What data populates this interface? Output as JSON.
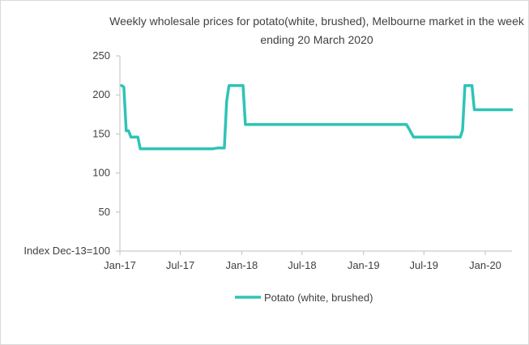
{
  "chart_data": {
    "type": "line",
    "title": "Weekly wholesale prices for potato(white, brushed), Melbourne market in the week ending 20 March 2020",
    "ylabel": "Index Dec-13=100",
    "xlabel": "",
    "ylim": [
      0,
      250
    ],
    "yticks": [
      "250",
      "200",
      "150",
      "100",
      "50",
      ""
    ],
    "xticks": [
      "Jan-17",
      "Jul-17",
      "Jan-18",
      "Jul-18",
      "Jan-19",
      "Jul-19",
      "Jan-20"
    ],
    "grid": false,
    "legend_position": "bottom",
    "series": [
      {
        "name": "Potato (white, brushed)",
        "color": "#2ec4b6",
        "points": [
          [
            "2017-01-06",
            212
          ],
          [
            "2017-01-13",
            210
          ],
          [
            "2017-01-20",
            154
          ],
          [
            "2017-01-27",
            154
          ],
          [
            "2017-02-03",
            146
          ],
          [
            "2017-02-24",
            146
          ],
          [
            "2017-03-03",
            131
          ],
          [
            "2017-04-07",
            131
          ],
          [
            "2017-06-02",
            131
          ],
          [
            "2017-08-04",
            131
          ],
          [
            "2017-10-06",
            131
          ],
          [
            "2017-10-20",
            132
          ],
          [
            "2017-11-10",
            132
          ],
          [
            "2017-11-17",
            192
          ],
          [
            "2017-11-24",
            212
          ],
          [
            "2018-01-05",
            212
          ],
          [
            "2018-01-12",
            162
          ],
          [
            "2018-04-06",
            162
          ],
          [
            "2018-07-06",
            162
          ],
          [
            "2018-10-05",
            162
          ],
          [
            "2019-01-04",
            162
          ],
          [
            "2019-05-10",
            162
          ],
          [
            "2019-05-17",
            157
          ],
          [
            "2019-05-31",
            146
          ],
          [
            "2019-08-02",
            146
          ],
          [
            "2019-10-04",
            146
          ],
          [
            "2019-10-18",
            146
          ],
          [
            "2019-10-25",
            155
          ],
          [
            "2019-11-01",
            212
          ],
          [
            "2019-11-22",
            212
          ],
          [
            "2019-11-29",
            181
          ],
          [
            "2020-01-10",
            181
          ],
          [
            "2020-03-20",
            181
          ]
        ]
      }
    ]
  }
}
